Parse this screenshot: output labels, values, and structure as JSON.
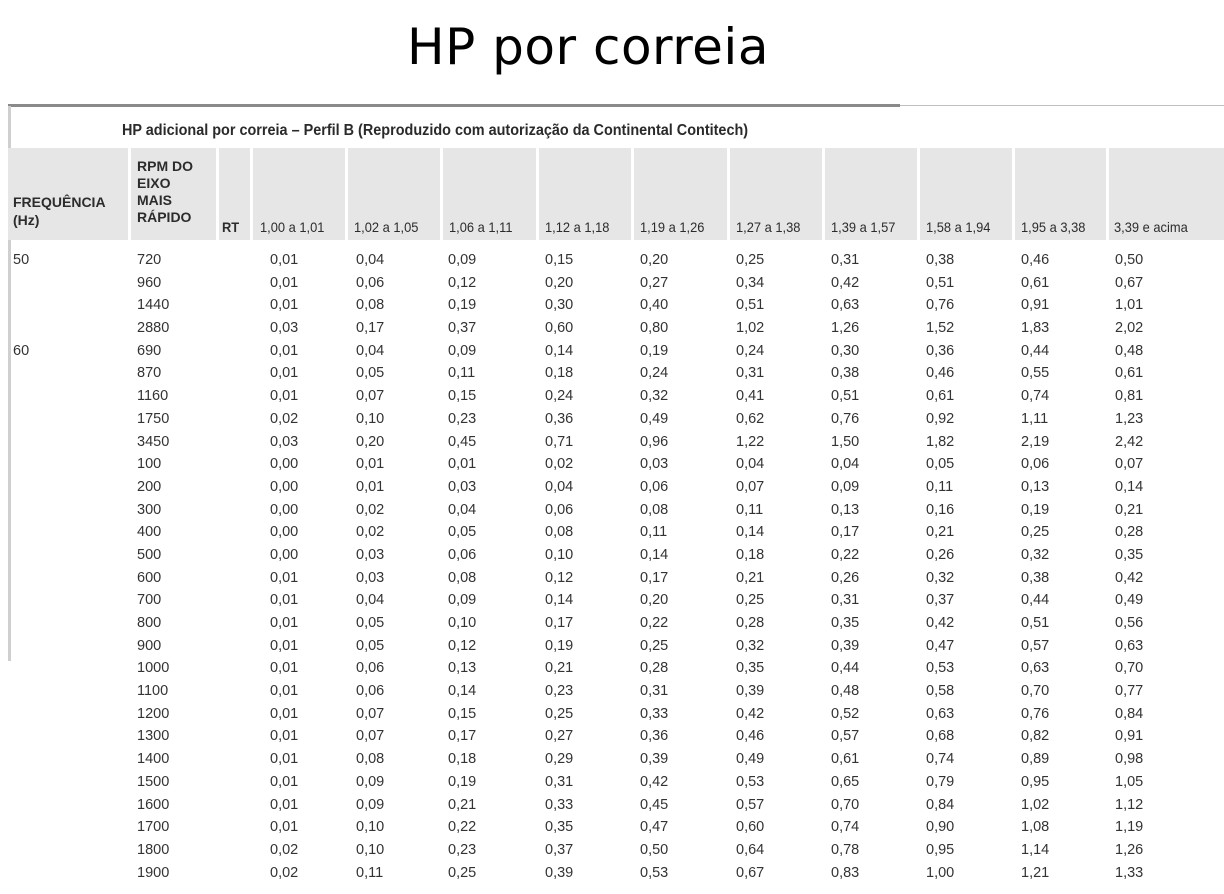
{
  "slide": {
    "title": "HP por correia"
  },
  "table": {
    "caption": "HP adicional por correia – Perfil B (Reproduzido com autorização da Continental Contitech)",
    "headers": {
      "frequency": [
        "FREQUÊNCIA",
        "(Hz)"
      ],
      "rpm": [
        "RPM DO",
        "EIXO",
        "MAIS",
        "RÁPIDO"
      ],
      "rt": "RT",
      "ranges": [
        "1,00 a 1,01",
        "1,02 a 1,05",
        "1,06 a 1,11",
        "1,12 a 1,18",
        "1,19 a 1,26",
        "1,27 a 1,38",
        "1,39 a 1,57",
        "1,58 a 1,94",
        "1,95 a 3,38",
        "3,39 e acima"
      ]
    },
    "rows": [
      {
        "freq": "50",
        "rpm": "720",
        "values": [
          "0,01",
          "0,04",
          "0,09",
          "0,15",
          "0,20",
          "0,25",
          "0,31",
          "0,38",
          "0,46",
          "0,50"
        ]
      },
      {
        "freq": "",
        "rpm": "960",
        "values": [
          "0,01",
          "0,06",
          "0,12",
          "0,20",
          "0,27",
          "0,34",
          "0,42",
          "0,51",
          "0,61",
          "0,67"
        ]
      },
      {
        "freq": "",
        "rpm": "1440",
        "values": [
          "0,01",
          "0,08",
          "0,19",
          "0,30",
          "0,40",
          "0,51",
          "0,63",
          "0,76",
          "0,91",
          "1,01"
        ]
      },
      {
        "freq": "",
        "rpm": "2880",
        "values": [
          "0,03",
          "0,17",
          "0,37",
          "0,60",
          "0,80",
          "1,02",
          "1,26",
          "1,52",
          "1,83",
          "2,02"
        ]
      },
      {
        "freq": "60",
        "rpm": "690",
        "values": [
          "0,01",
          "0,04",
          "0,09",
          "0,14",
          "0,19",
          "0,24",
          "0,30",
          "0,36",
          "0,44",
          "0,48"
        ]
      },
      {
        "freq": "",
        "rpm": "870",
        "values": [
          "0,01",
          "0,05",
          "0,11",
          "0,18",
          "0,24",
          "0,31",
          "0,38",
          "0,46",
          "0,55",
          "0,61"
        ]
      },
      {
        "freq": "",
        "rpm": "1160",
        "values": [
          "0,01",
          "0,07",
          "0,15",
          "0,24",
          "0,32",
          "0,41",
          "0,51",
          "0,61",
          "0,74",
          "0,81"
        ]
      },
      {
        "freq": "",
        "rpm": "1750",
        "values": [
          "0,02",
          "0,10",
          "0,23",
          "0,36",
          "0,49",
          "0,62",
          "0,76",
          "0,92",
          "1,11",
          "1,23"
        ]
      },
      {
        "freq": "",
        "rpm": "3450",
        "values": [
          "0,03",
          "0,20",
          "0,45",
          "0,71",
          "0,96",
          "1,22",
          "1,50",
          "1,82",
          "2,19",
          "2,42"
        ]
      },
      {
        "freq": "",
        "rpm": "100",
        "values": [
          "0,00",
          "0,01",
          "0,01",
          "0,02",
          "0,03",
          "0,04",
          "0,04",
          "0,05",
          "0,06",
          "0,07"
        ]
      },
      {
        "freq": "",
        "rpm": "200",
        "values": [
          "0,00",
          "0,01",
          "0,03",
          "0,04",
          "0,06",
          "0,07",
          "0,09",
          "0,11",
          "0,13",
          "0,14"
        ]
      },
      {
        "freq": "",
        "rpm": "300",
        "values": [
          "0,00",
          "0,02",
          "0,04",
          "0,06",
          "0,08",
          "0,11",
          "0,13",
          "0,16",
          "0,19",
          "0,21"
        ]
      },
      {
        "freq": "",
        "rpm": "400",
        "values": [
          "0,00",
          "0,02",
          "0,05",
          "0,08",
          "0,11",
          "0,14",
          "0,17",
          "0,21",
          "0,25",
          "0,28"
        ]
      },
      {
        "freq": "",
        "rpm": "500",
        "values": [
          "0,00",
          "0,03",
          "0,06",
          "0,10",
          "0,14",
          "0,18",
          "0,22",
          "0,26",
          "0,32",
          "0,35"
        ]
      },
      {
        "freq": "",
        "rpm": "600",
        "values": [
          "0,01",
          "0,03",
          "0,08",
          "0,12",
          "0,17",
          "0,21",
          "0,26",
          "0,32",
          "0,38",
          "0,42"
        ]
      },
      {
        "freq": "",
        "rpm": "700",
        "values": [
          "0,01",
          "0,04",
          "0,09",
          "0,14",
          "0,20",
          "0,25",
          "0,31",
          "0,37",
          "0,44",
          "0,49"
        ]
      },
      {
        "freq": "",
        "rpm": "800",
        "values": [
          "0,01",
          "0,05",
          "0,10",
          "0,17",
          "0,22",
          "0,28",
          "0,35",
          "0,42",
          "0,51",
          "0,56"
        ]
      },
      {
        "freq": "",
        "rpm": "900",
        "values": [
          "0,01",
          "0,05",
          "0,12",
          "0,19",
          "0,25",
          "0,32",
          "0,39",
          "0,47",
          "0,57",
          "0,63"
        ]
      },
      {
        "freq": "",
        "rpm": "1000",
        "values": [
          "0,01",
          "0,06",
          "0,13",
          "0,21",
          "0,28",
          "0,35",
          "0,44",
          "0,53",
          "0,63",
          "0,70"
        ]
      },
      {
        "freq": "",
        "rpm": "1100",
        "values": [
          "0,01",
          "0,06",
          "0,14",
          "0,23",
          "0,31",
          "0,39",
          "0,48",
          "0,58",
          "0,70",
          "0,77"
        ]
      },
      {
        "freq": "",
        "rpm": "1200",
        "values": [
          "0,01",
          "0,07",
          "0,15",
          "0,25",
          "0,33",
          "0,42",
          "0,52",
          "0,63",
          "0,76",
          "0,84"
        ]
      },
      {
        "freq": "",
        "rpm": "1300",
        "values": [
          "0,01",
          "0,07",
          "0,17",
          "0,27",
          "0,36",
          "0,46",
          "0,57",
          "0,68",
          "0,82",
          "0,91"
        ]
      },
      {
        "freq": "",
        "rpm": "1400",
        "values": [
          "0,01",
          "0,08",
          "0,18",
          "0,29",
          "0,39",
          "0,49",
          "0,61",
          "0,74",
          "0,89",
          "0,98"
        ]
      },
      {
        "freq": "",
        "rpm": "1500",
        "values": [
          "0,01",
          "0,09",
          "0,19",
          "0,31",
          "0,42",
          "0,53",
          "0,65",
          "0,79",
          "0,95",
          "1,05"
        ]
      },
      {
        "freq": "",
        "rpm": "1600",
        "values": [
          "0,01",
          "0,09",
          "0,21",
          "0,33",
          "0,45",
          "0,57",
          "0,70",
          "0,84",
          "1,02",
          "1,12"
        ]
      },
      {
        "freq": "",
        "rpm": "1700",
        "values": [
          "0,01",
          "0,10",
          "0,22",
          "0,35",
          "0,47",
          "0,60",
          "0,74",
          "0,90",
          "1,08",
          "1,19"
        ]
      },
      {
        "freq": "",
        "rpm": "1800",
        "values": [
          "0,02",
          "0,10",
          "0,23",
          "0,37",
          "0,50",
          "0,64",
          "0,78",
          "0,95",
          "1,14",
          "1,26"
        ]
      },
      {
        "freq": "",
        "rpm": "1900",
        "values": [
          "0,02",
          "0,11",
          "0,25",
          "0,39",
          "0,53",
          "0,67",
          "0,83",
          "1,00",
          "1,21",
          "1,33"
        ]
      }
    ]
  }
}
